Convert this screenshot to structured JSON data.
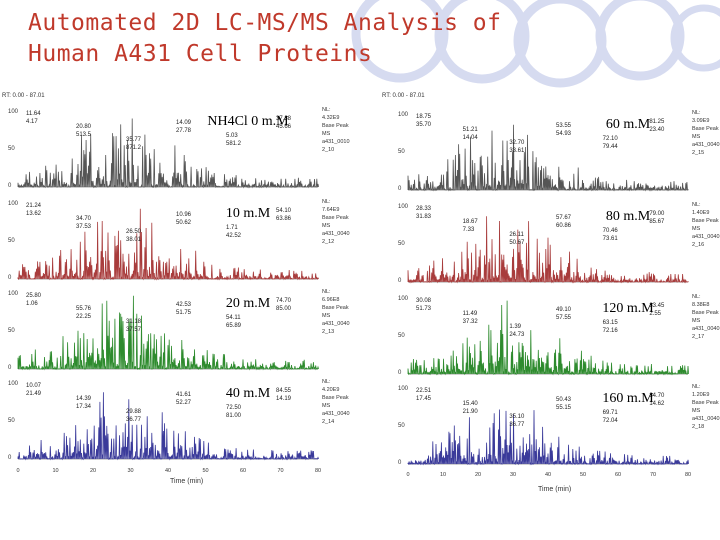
{
  "slide": {
    "title_line1": "Automated 2D LC-MS/MS Analysis of",
    "title_line2": "Human A431 Cell Proteins",
    "left_header": "RT: 0.00 - 87.01",
    "right_header": "RT: 0.00 - 87.01",
    "x_axis_label": "Time (min)"
  },
  "colors": {
    "title": "#c0392b",
    "deco_circle": "#d4d9ef",
    "series_gray": "#555555",
    "series_red": "#a83c3c",
    "series_green": "#2e8b2e",
    "series_blue": "#3a3a9a"
  },
  "chromatograms": [
    {
      "id": "nh4cl-0",
      "label": "NH4Cl  0 m.M",
      "color": "series_gray",
      "column": "left",
      "meta": [
        "NL:",
        "4.32E9",
        "Base Peak",
        "MS",
        "a431_0010",
        "2_10"
      ],
      "peaks": [
        [
          "11.64",
          "4.17"
        ],
        [
          "20.80",
          "513.5"
        ],
        [
          "35.77",
          "871.2"
        ],
        [
          "14.09",
          "27.78"
        ],
        [
          "5.03",
          "581.2"
        ],
        [
          "37.38",
          "45.66"
        ]
      ]
    },
    {
      "id": "nh4cl-10",
      "label": "10 m.M",
      "color": "series_red",
      "column": "left",
      "meta": [
        "NL:",
        "7.64E9",
        "Base Peak",
        "MS",
        "a431_0040",
        "2_12"
      ],
      "peaks": [
        [
          "21.24",
          "13.62"
        ],
        [
          "34.70",
          "37.53"
        ],
        [
          "26.50",
          "38.01"
        ],
        [
          "10.96",
          "50.62"
        ],
        [
          "1.71",
          "42.52"
        ],
        [
          "54.10",
          "63.86"
        ]
      ]
    },
    {
      "id": "nh4cl-20",
      "label": "20 m.M",
      "color": "series_green",
      "column": "left",
      "meta": [
        "NL:",
        "6.96E8",
        "Base Peak",
        "MS",
        "a431_0040",
        "2_13"
      ],
      "peaks": [
        [
          "25.80",
          "1.06"
        ],
        [
          "55.76",
          "22.25"
        ],
        [
          "31.18",
          "37.57"
        ],
        [
          "42.53",
          "51.75"
        ],
        [
          "54.11",
          "65.89"
        ],
        [
          "74.70",
          "85.00"
        ]
      ]
    },
    {
      "id": "nh4cl-40",
      "label": "40 m.M",
      "color": "series_blue",
      "column": "left",
      "meta": [
        "NL:",
        "4.20E9",
        "Base Peak",
        "MS",
        "a431_0040",
        "2_14"
      ],
      "peaks": [
        [
          "10.07",
          "21.49"
        ],
        [
          "14.39",
          "17.34"
        ],
        [
          "29.88",
          "36.77"
        ],
        [
          "41.61",
          "52.27"
        ],
        [
          "72.50",
          "81.00"
        ],
        [
          "84.55",
          "14.19"
        ]
      ]
    },
    {
      "id": "nh4cl-60",
      "label": "60 m.M",
      "color": "series_gray",
      "column": "right",
      "meta": [
        "NL:",
        "3.09E9",
        "Base Peak",
        "MS",
        "a431_0040",
        "2_15"
      ],
      "peaks": [
        [
          "18.75",
          "35.70"
        ],
        [
          "51.21",
          "14.04"
        ],
        [
          "32.70",
          "33.61"
        ],
        [
          "53.55",
          "54.93"
        ],
        [
          "72.10",
          "79.44"
        ],
        [
          "81.25",
          "23.40"
        ]
      ]
    },
    {
      "id": "nh4cl-80",
      "label": "80 m.M",
      "color": "series_red",
      "column": "right",
      "meta": [
        "NL:",
        "1.40E9",
        "Base Peak",
        "MS",
        "a431_0040",
        "2_16"
      ],
      "peaks": [
        [
          "28.33",
          "31.83"
        ],
        [
          "18.67",
          "7.33"
        ],
        [
          "26.11",
          "50.67"
        ],
        [
          "57.67",
          "60.86"
        ],
        [
          "70.46",
          "73.61"
        ],
        [
          "79.00",
          "85.67"
        ]
      ]
    },
    {
      "id": "nh4cl-120",
      "label": "120 m.M",
      "color": "series_green",
      "column": "right",
      "meta": [
        "NL:",
        "8.38E8",
        "Base Peak",
        "MS",
        "a431_0040",
        "2_17"
      ],
      "peaks": [
        [
          "30.08",
          "51.73"
        ],
        [
          "11.49",
          "37.32"
        ],
        [
          "1.39",
          "24.73"
        ],
        [
          "49.10",
          "57.55"
        ],
        [
          "63.15",
          "72.16"
        ],
        [
          "83.45",
          "2.55"
        ]
      ]
    },
    {
      "id": "nh4cl-160",
      "label": "160 m.M",
      "color": "series_blue",
      "column": "right",
      "meta": [
        "NL:",
        "1.20E9",
        "Base Peak",
        "MS",
        "a431_0040",
        "2_18"
      ],
      "peaks": [
        [
          "22.51",
          "17.45"
        ],
        [
          "15.40",
          "21.90"
        ],
        [
          "35.10",
          "36.77"
        ],
        [
          "50.43",
          "55.15"
        ],
        [
          "69.71",
          "72.04"
        ],
        [
          "84.70",
          "14.62"
        ]
      ]
    }
  ]
}
